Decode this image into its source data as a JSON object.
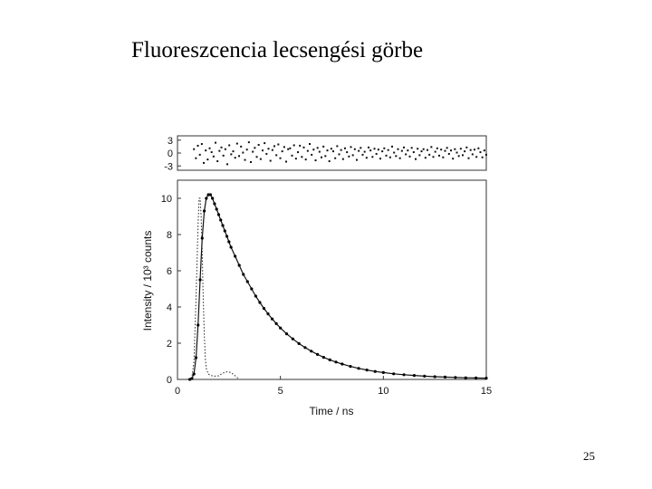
{
  "slide": {
    "title": "Fluoreszcencia lecsengési görbe",
    "page_number": "25"
  },
  "chart_data": [
    {
      "panel": "residuals",
      "type": "scatter",
      "xlim": [
        0,
        15
      ],
      "ylim": [
        -4,
        4
      ],
      "yticks": [
        "3",
        "0",
        "-3"
      ],
      "ytick_values": [
        3,
        0,
        -3
      ],
      "series": [
        {
          "values": [
            0.9,
            -1.2,
            1.7,
            -0.4,
            2.1,
            -2.3,
            0.6,
            -1.5,
            1.1,
            0.2,
            -0.8,
            2.4,
            -1.9,
            0.5,
            1.3,
            -0.6,
            0.9,
            -2.6,
            1.8,
            -0.3,
            0.4,
            -1.1,
            2.2,
            -0.7,
            1.5,
            0.1,
            -1.6,
            0.8,
            2.5,
            -2.1,
            0.3,
            1.2,
            -0.9,
            1.9,
            -1.4,
            0.6,
            2.3,
            -0.2,
            1.0,
            -1.8,
            0.7,
            1.6,
            -0.5,
            2.0,
            -1.2,
            0.4,
            1.4,
            -2.0,
            0.9,
            1.1,
            -0.6,
            1.8,
            -1.3,
            0.2,
            1.7,
            -0.9,
            1.3,
            -1.5,
            0.5,
            2.1,
            -0.4,
            0.8,
            -1.7,
            1.2,
            0.3,
            -1.0,
            1.5,
            -0.7,
            0.6,
            -1.9,
            1.0,
            0.4,
            -1.2,
            1.6,
            -0.3,
            0.7,
            -1.4,
            1.1,
            0.2,
            -0.8,
            1.4,
            -0.5,
            0.9,
            -1.6,
            0.5,
            1.2,
            -0.4,
            0.3,
            -1.1,
            1.3,
            0.6,
            -0.9,
            1.0,
            -0.2,
            0.8,
            -1.3,
            0.4,
            1.1,
            -0.6,
            0.7,
            -1.0,
            1.5,
            0.1,
            -0.7,
            0.9,
            -1.2,
            0.5,
            1.3,
            -0.3,
            0.6,
            -0.8,
            1.2,
            0.2,
            -1.4,
            1.0,
            -0.5,
            0.4,
            0.9,
            -1.1,
            0.7,
            -0.4,
            1.4,
            -0.9,
            0.3,
            1.1,
            -0.6,
            0.8,
            -1.0,
            0.5,
            1.2,
            -0.2,
            0.6,
            -1.3,
            0.9,
            0.1,
            -0.7,
            1.0,
            -0.5,
            0.4,
            1.3,
            -1.2,
            0.7,
            -0.3,
            0.8,
            -0.9,
            1.1,
            0.2,
            -1.0,
            0.6,
            -0.4
          ]
        }
      ]
    },
    {
      "panel": "decay",
      "type": "line",
      "xlabel": "Time / ns",
      "ylabel": "Intensity / 10³ counts",
      "xlim": [
        0,
        15
      ],
      "ylim": [
        0,
        11
      ],
      "xticks": [
        "0",
        "5",
        "10",
        "15"
      ],
      "xtick_values": [
        0,
        5,
        10,
        15
      ],
      "yticks": [
        "0",
        "2",
        "4",
        "6",
        "8",
        "10"
      ],
      "ytick_values": [
        0,
        2,
        4,
        6,
        8,
        10
      ],
      "series": [
        {
          "style": "dotted",
          "x": [
            0.5,
            0.7,
            0.8,
            0.9,
            1.0,
            1.05,
            1.1,
            1.15,
            1.2,
            1.25,
            1.3,
            1.35,
            1.4,
            1.5,
            1.6,
            1.8,
            2.0,
            2.2,
            2.4,
            2.6,
            2.8,
            3.0
          ],
          "y": [
            0,
            0.1,
            1.0,
            4.5,
            8.5,
            10.0,
            10.0,
            9.0,
            7.0,
            4.5,
            2.5,
            1.2,
            0.6,
            0.3,
            0.22,
            0.18,
            0.2,
            0.35,
            0.42,
            0.38,
            0.2,
            0
          ]
        },
        {
          "style": "solid-with-markers",
          "x": [
            0.6,
            0.7,
            0.8,
            0.9,
            1.0,
            1.1,
            1.2,
            1.3,
            1.4,
            1.5,
            1.6,
            1.7,
            1.8,
            1.9,
            2.0,
            2.1,
            2.2,
            2.3,
            2.4,
            2.5,
            2.6,
            2.8,
            3.0,
            3.2,
            3.4,
            3.6,
            3.8,
            4.0,
            4.2,
            4.4,
            4.6,
            4.8,
            5.0,
            5.3,
            5.6,
            5.9,
            6.2,
            6.5,
            6.8,
            7.1,
            7.4,
            7.7,
            8.0,
            8.4,
            8.8,
            9.2,
            9.6,
            10.0,
            10.5,
            11.0,
            11.5,
            12.0,
            12.5,
            13.0,
            13.5,
            14.0,
            14.5,
            15.0
          ],
          "y": [
            0,
            0.05,
            0.3,
            1.2,
            3.0,
            5.5,
            7.8,
            9.3,
            10.0,
            10.2,
            10.2,
            10.0,
            9.7,
            9.4,
            9.1,
            8.8,
            8.5,
            8.2,
            7.9,
            7.6,
            7.3,
            6.8,
            6.3,
            5.8,
            5.4,
            5.0,
            4.6,
            4.25,
            3.92,
            3.62,
            3.34,
            3.08,
            2.84,
            2.52,
            2.24,
            1.98,
            1.76,
            1.56,
            1.38,
            1.22,
            1.08,
            0.96,
            0.85,
            0.72,
            0.61,
            0.52,
            0.44,
            0.38,
            0.31,
            0.26,
            0.22,
            0.18,
            0.15,
            0.13,
            0.11,
            0.09,
            0.08,
            0.07
          ]
        }
      ]
    }
  ]
}
